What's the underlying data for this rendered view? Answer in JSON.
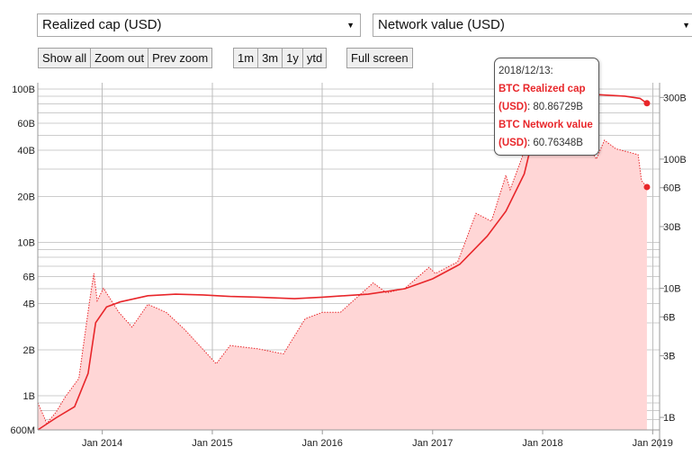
{
  "controls": {
    "left_metric": "Realized cap (USD)",
    "right_metric": "Network value (USD)",
    "zoom_buttons": [
      "Show all",
      "Zoom out",
      "Prev zoom"
    ],
    "range_buttons": [
      "1m",
      "3m",
      "1y",
      "ytd"
    ],
    "fullscreen_label": "Full screen"
  },
  "tooltip": {
    "date": "2018/12/13:",
    "rows": [
      {
        "name": "BTC Realized cap (USD)",
        "value": ": 80.86729B"
      },
      {
        "name": "BTC Network value (USD)",
        "value": ": 60.76348B"
      }
    ]
  },
  "chart_data": {
    "type": "line",
    "colors": {
      "realized": "#e8262a",
      "network_line": "#e8262a",
      "network_fill": "#ffd6d6",
      "grid": "#cccccc"
    },
    "x_ticks": [
      "Jan 2014",
      "Jan 2015",
      "Jan 2016",
      "Jan 2017",
      "Jan 2018",
      "Jan 2019"
    ],
    "y_left": {
      "scale": "log",
      "min": 600000000,
      "max": 110000000000,
      "ticks": [
        {
          "v": 600000000,
          "label": "600M"
        },
        {
          "v": 1000000000,
          "label": "1B"
        },
        {
          "v": 2000000000,
          "label": "2B"
        },
        {
          "v": 4000000000,
          "label": "4B"
        },
        {
          "v": 6000000000,
          "label": "6B"
        },
        {
          "v": 10000000000,
          "label": "10B"
        },
        {
          "v": 20000000000,
          "label": "20B"
        },
        {
          "v": 40000000000,
          "label": "40B"
        },
        {
          "v": 60000000000,
          "label": "60B"
        },
        {
          "v": 100000000000,
          "label": "100B"
        }
      ]
    },
    "y_right": {
      "scale": "log",
      "min": 800000000,
      "max": 390000000000,
      "ticks": [
        {
          "v": 1000000000,
          "label": "1B"
        },
        {
          "v": 3000000000,
          "label": "3B"
        },
        {
          "v": 6000000000,
          "label": "6B"
        },
        {
          "v": 10000000000,
          "label": "10B"
        },
        {
          "v": 30000000000,
          "label": "30B"
        },
        {
          "v": 60000000000,
          "label": "60B"
        },
        {
          "v": 100000000000,
          "label": "100B"
        },
        {
          "v": 300000000000,
          "label": "300B"
        }
      ]
    },
    "series": [
      {
        "name": "BTC Realized cap (USD)",
        "axis": "left",
        "points": [
          [
            "2013-06-01",
            0.6
          ],
          [
            "2013-08-01",
            0.72
          ],
          [
            "2013-10-01",
            0.85
          ],
          [
            "2013-11-15",
            1.4
          ],
          [
            "2013-12-10",
            3.0
          ],
          [
            "2014-01-15",
            3.8
          ],
          [
            "2014-03-01",
            4.1
          ],
          [
            "2014-06-01",
            4.5
          ],
          [
            "2014-09-01",
            4.6
          ],
          [
            "2014-12-01",
            4.55
          ],
          [
            "2015-03-01",
            4.45
          ],
          [
            "2015-06-01",
            4.4
          ],
          [
            "2015-10-01",
            4.3
          ],
          [
            "2016-01-01",
            4.4
          ],
          [
            "2016-06-01",
            4.6
          ],
          [
            "2016-10-01",
            5.0
          ],
          [
            "2017-01-01",
            5.8
          ],
          [
            "2017-04-01",
            7.2
          ],
          [
            "2017-07-01",
            11.0
          ],
          [
            "2017-09-01",
            16.0
          ],
          [
            "2017-11-01",
            28.0
          ],
          [
            "2017-12-20",
            70.0
          ],
          [
            "2018-01-20",
            87.0
          ],
          [
            "2018-04-01",
            92.0
          ],
          [
            "2018-07-01",
            92.0
          ],
          [
            "2018-10-01",
            90.0
          ],
          [
            "2018-11-20",
            87.0
          ],
          [
            "2018-12-13",
            80.86729
          ]
        ]
      },
      {
        "name": "BTC Network value (USD)",
        "axis": "right",
        "points": [
          [
            "2013-06-01",
            1.3
          ],
          [
            "2013-07-01",
            0.9
          ],
          [
            "2013-08-01",
            1.1
          ],
          [
            "2013-09-01",
            1.45
          ],
          [
            "2013-10-15",
            2.0
          ],
          [
            "2013-11-20",
            8.0
          ],
          [
            "2013-12-04",
            13.0
          ],
          [
            "2013-12-15",
            8.0
          ],
          [
            "2014-01-05",
            10.0
          ],
          [
            "2014-02-25",
            6.5
          ],
          [
            "2014-04-10",
            5.0
          ],
          [
            "2014-06-01",
            7.5
          ],
          [
            "2014-08-01",
            6.5
          ],
          [
            "2014-10-01",
            4.8
          ],
          [
            "2015-01-14",
            2.6
          ],
          [
            "2015-03-01",
            3.6
          ],
          [
            "2015-06-01",
            3.4
          ],
          [
            "2015-08-25",
            3.1
          ],
          [
            "2015-11-05",
            5.8
          ],
          [
            "2016-01-01",
            6.5
          ],
          [
            "2016-03-01",
            6.5
          ],
          [
            "2016-06-18",
            11.0
          ],
          [
            "2016-08-01",
            9.2
          ],
          [
            "2016-10-01",
            10.0
          ],
          [
            "2016-12-20",
            14.5
          ],
          [
            "2017-01-10",
            13.0
          ],
          [
            "2017-03-25",
            16.0
          ],
          [
            "2017-05-25",
            38.0
          ],
          [
            "2017-07-15",
            33.0
          ],
          [
            "2017-09-01",
            75.0
          ],
          [
            "2017-09-15",
            58.0
          ],
          [
            "2017-11-01",
            115.0
          ],
          [
            "2017-12-17",
            325.0
          ],
          [
            "2018-02-06",
            115.0
          ],
          [
            "2018-03-05",
            190.0
          ],
          [
            "2018-04-05",
            110.0
          ],
          [
            "2018-05-05",
            165.0
          ],
          [
            "2018-06-28",
            100.0
          ],
          [
            "2018-07-25",
            140.0
          ],
          [
            "2018-09-01",
            120.0
          ],
          [
            "2018-10-15",
            113.0
          ],
          [
            "2018-11-14",
            108.0
          ],
          [
            "2018-11-25",
            68.0
          ],
          [
            "2018-12-13",
            60.76348
          ]
        ]
      }
    ]
  }
}
